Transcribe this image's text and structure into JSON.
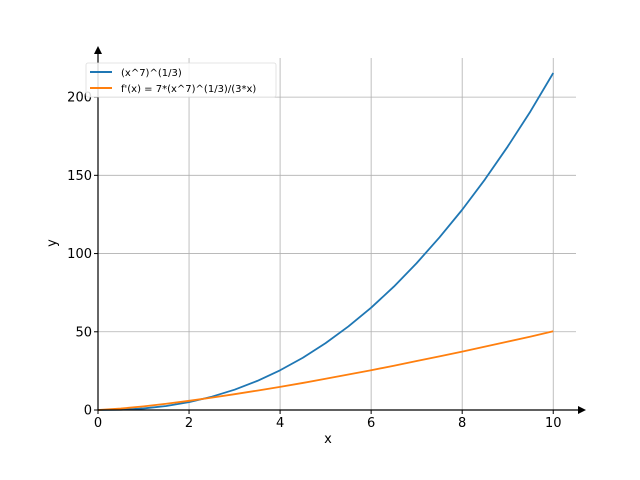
{
  "chart_data": {
    "type": "line",
    "xlabel": "x",
    "ylabel": "y",
    "xlim": [
      0,
      10.5
    ],
    "ylim": [
      0,
      225
    ],
    "xticks": [
      0,
      2,
      4,
      6,
      8,
      10
    ],
    "yticks": [
      0,
      50,
      100,
      150,
      200
    ],
    "grid": true,
    "legend_position": "top-left",
    "series": [
      {
        "name": "(x^7)^(1/3)",
        "color": "#1f77b4",
        "x": [
          0,
          0.5,
          1,
          1.5,
          2,
          2.5,
          3,
          3.5,
          4,
          4.5,
          5,
          5.5,
          6,
          6.5,
          7,
          7.5,
          8,
          8.5,
          9,
          9.5,
          10
        ],
        "y": [
          0,
          0.2,
          1,
          2.57,
          5.04,
          8.5,
          12.98,
          18.6,
          25.4,
          33.4,
          42.75,
          53.4,
          65.4,
          78.9,
          93.9,
          110.3,
          128,
          147.4,
          168.4,
          190.9,
          215.4
        ]
      },
      {
        "name": "f'(x) = 7*(x^7)^(1/3)/(3*x)",
        "color": "#ff7f0e",
        "x": [
          0,
          0.5,
          1,
          1.5,
          2,
          2.5,
          3,
          3.5,
          4,
          4.5,
          5,
          5.5,
          6,
          6.5,
          7,
          7.5,
          8,
          8.5,
          9,
          9.5,
          10
        ],
        "y": [
          0,
          0.93,
          2.33,
          4,
          5.88,
          7.94,
          10.1,
          12.4,
          14.8,
          17.3,
          19.95,
          22.7,
          25.4,
          28.3,
          31.3,
          34.3,
          37.3,
          40.5,
          43.7,
          46.9,
          50.3
        ]
      }
    ]
  }
}
